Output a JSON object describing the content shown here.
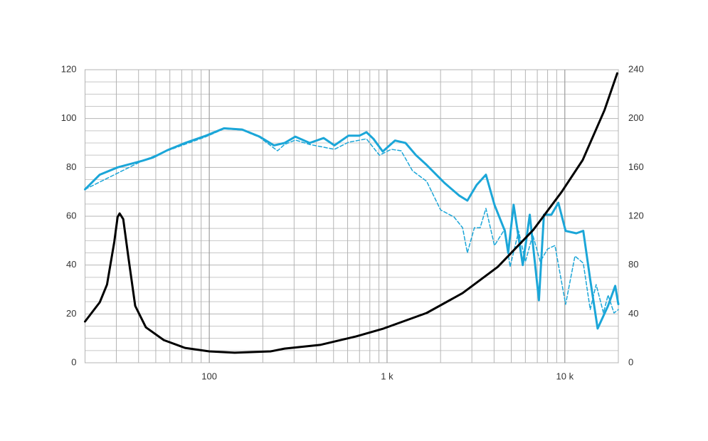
{
  "chart_data": {
    "type": "line",
    "log_x": true,
    "grid": true,
    "xlim": [
      20,
      20000
    ],
    "xticks": [
      100,
      {
        "value": 1000,
        "label": "1 k"
      },
      {
        "value": 10000,
        "label": "10 k"
      }
    ],
    "xgrid": [
      20,
      30,
      40,
      50,
      60,
      70,
      80,
      90,
      100,
      200,
      300,
      400,
      500,
      600,
      700,
      800,
      900,
      1000,
      2000,
      3000,
      4000,
      5000,
      6000,
      7000,
      8000,
      9000,
      10000,
      20000
    ],
    "ylim": [
      0,
      120
    ],
    "yticks": [
      0,
      20,
      40,
      60,
      80,
      100,
      120
    ],
    "ygrid": [
      5,
      10,
      15,
      25,
      30,
      35,
      45,
      50,
      55,
      65,
      70,
      75,
      85,
      90,
      95,
      105,
      110,
      115
    ],
    "y2lim": [
      0,
      240
    ],
    "y2ticks": [
      0,
      40,
      80,
      120,
      160,
      200,
      240
    ],
    "series": [
      {
        "color": "#1ba6d8",
        "dash": false,
        "width": 3,
        "x": [
          20,
          24.2,
          30.5,
          42,
          48,
          58,
          73,
          96,
          121,
          153,
          192,
          231,
          265,
          305,
          367,
          440,
          506,
          607,
          700,
          766,
          838,
          946,
          1108,
          1270,
          1455,
          1670,
          2100,
          2540,
          2830,
          3190,
          3600,
          4020,
          4600,
          4800,
          5150,
          5800,
          6350,
          7150,
          7630,
          8400,
          9200,
          10100,
          11600,
          12700,
          13900,
          15300,
          17500,
          19200,
          20000
        ],
        "values": [
          71,
          77,
          80,
          82.7,
          84,
          87,
          90,
          93,
          96,
          95.5,
          92.6,
          89,
          90,
          92.6,
          90,
          92,
          89,
          93,
          93,
          94.4,
          91.7,
          86.5,
          91,
          90,
          85,
          81,
          73.7,
          68.5,
          66.4,
          72.8,
          77,
          64.7,
          54,
          45,
          64.7,
          40,
          60.6,
          25.6,
          60.6,
          60.6,
          65.5,
          54,
          53,
          54,
          34,
          14,
          23.3,
          31.5,
          24
        ]
      },
      {
        "color": "#1ba6d8",
        "dash": true,
        "width": 1.5,
        "x": [
          20,
          42,
          58,
          96,
          121,
          153,
          192,
          242,
          265,
          305,
          367,
          506,
          607,
          766,
          906,
          1056,
          1200,
          1390,
          1670,
          2000,
          2380,
          2660,
          2830,
          3100,
          3340,
          3600,
          4020,
          4600,
          4920,
          5500,
          6000,
          6600,
          7270,
          8000,
          8800,
          10100,
          11400,
          12700,
          13900,
          15000,
          16500,
          17500,
          18900,
          20000
        ],
        "values": [
          71,
          82.7,
          86.8,
          92.6,
          95.8,
          95.3,
          92.3,
          86.8,
          89.4,
          91.2,
          89.4,
          87.4,
          90.3,
          91.7,
          85,
          87.4,
          86.8,
          78.6,
          74.3,
          62.6,
          59.7,
          55.3,
          45,
          55.3,
          55.3,
          63.2,
          48,
          54.8,
          39.3,
          53.9,
          41.4,
          52.4,
          41.4,
          46.6,
          48,
          23.9,
          43.7,
          40.8,
          21.8,
          32,
          20.4,
          27.7,
          20.4,
          21.8
        ]
      },
      {
        "color": "#000000",
        "dash": false,
        "width": 3,
        "axis": "y2",
        "x": [
          20,
          24.2,
          26.6,
          29.2,
          30.5,
          31.3,
          32.8,
          35,
          38.3,
          44,
          55.5,
          73,
          100,
          139,
          221,
          265,
          420,
          667,
          955,
          1670,
          2660,
          4200,
          6660,
          9600,
          12600,
          16700,
          19700
        ],
        "values": [
          33.8,
          49.5,
          64,
          99,
          119.4,
          122.3,
          117.6,
          87.4,
          46.6,
          29,
          18.6,
          12.2,
          9.3,
          8.2,
          9.3,
          11.6,
          14.6,
          21.5,
          28,
          40.8,
          57,
          78.6,
          109,
          140,
          166,
          206.7,
          237
        ]
      }
    ]
  }
}
